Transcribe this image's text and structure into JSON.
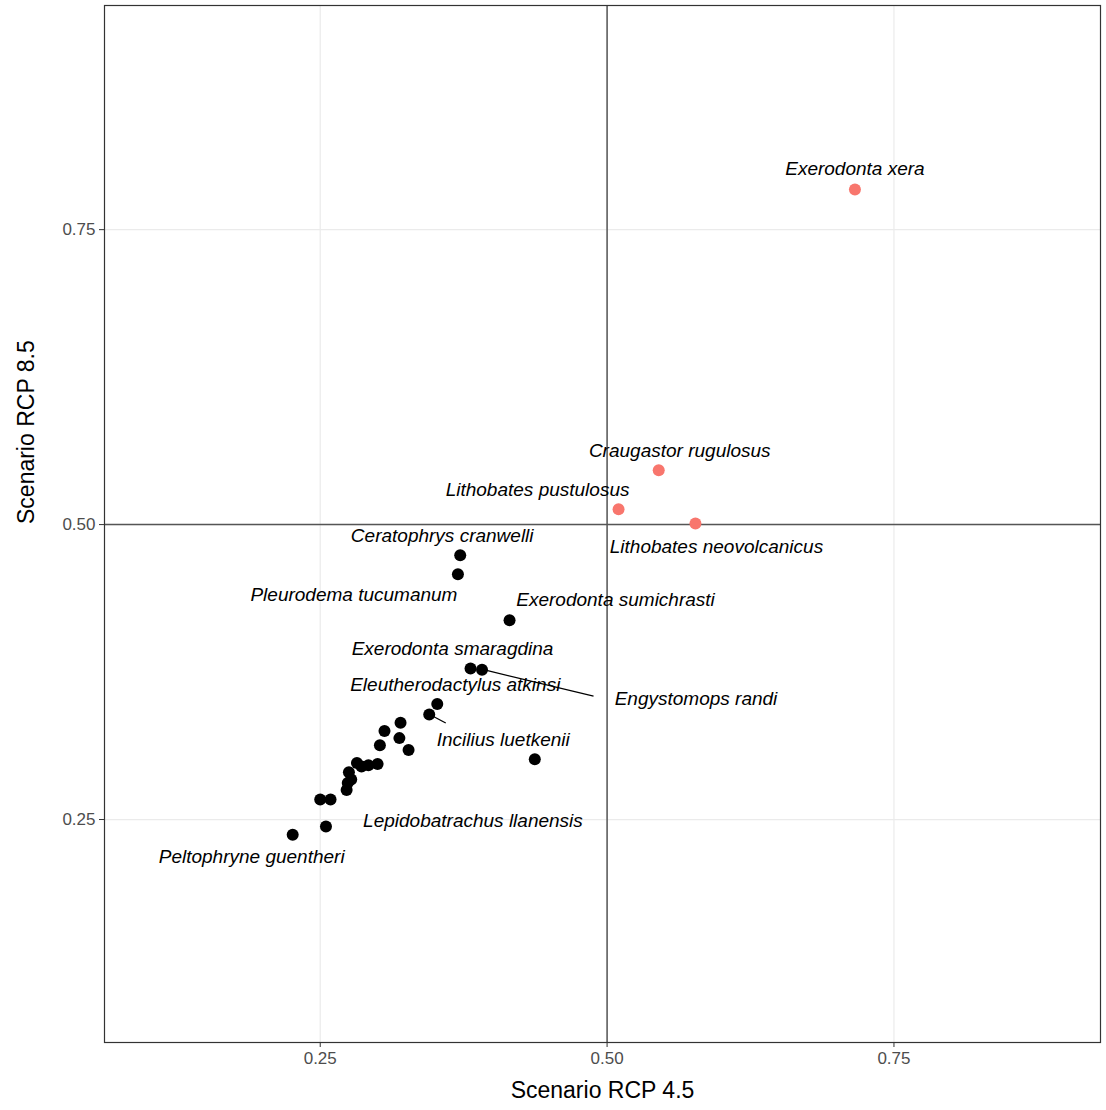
{
  "chart_data": {
    "type": "scatter",
    "x_label": "Scenario RCP 4.5",
    "y_label": "Scenario RCP 8.5",
    "x": [
      0.716,
      0.545,
      0.51,
      0.577,
      0.372,
      0.37,
      0.415,
      0.381,
      0.391,
      0.352,
      0.345,
      0.437,
      0.32,
      0.306,
      0.319,
      0.327,
      0.302,
      0.3,
      0.292,
      0.286,
      0.282,
      0.275,
      0.277,
      0.274,
      0.273,
      0.25,
      0.259,
      0.255,
      0.226
    ],
    "y": [
      0.784,
      0.546,
      0.513,
      0.501,
      0.474,
      0.458,
      0.419,
      0.378,
      0.377,
      0.348,
      0.339,
      0.301,
      0.332,
      0.325,
      0.319,
      0.309,
      0.313,
      0.297,
      0.296,
      0.295,
      0.298,
      0.29,
      0.284,
      0.281,
      0.275,
      0.267,
      0.267,
      0.244,
      0.237
    ],
    "labels": [
      "Exerodonta xera",
      "Craugastor rugulosus",
      "Lithobates pustulosus",
      "Lithobates neovolcanicus",
      "Ceratophrys cranwelli",
      "Pleurodema tucumanum",
      "Exerodonta sumichrasti",
      "Exerodonta smaragdina",
      "Engystomops randi",
      "Eleutherodactylus atkinsi",
      "Incilius luetkenii",
      null,
      null,
      null,
      null,
      null,
      null,
      null,
      null,
      null,
      null,
      null,
      null,
      null,
      null,
      null,
      null,
      "Lepidobatrachus llanensis",
      "Peltophryne guentheri"
    ],
    "colors": [
      "#F8766D",
      "#F8766D",
      "#F8766D",
      "#F8766D",
      "#000000",
      "#000000",
      "#000000",
      "#000000",
      "#000000",
      "#000000",
      "#000000",
      "#000000",
      "#000000",
      "#000000",
      "#000000",
      "#000000",
      "#000000",
      "#000000",
      "#000000",
      "#000000",
      "#000000",
      "#000000",
      "#000000",
      "#000000",
      "#000000",
      "#000000",
      "#000000",
      "#000000",
      "#000000"
    ],
    "xlim": [
      0.062,
      0.93
    ],
    "ylim": [
      0.061,
      0.94
    ],
    "xticks": [
      0.25,
      {
        "value": 0.5,
        "label": "0.50"
      },
      0.75
    ],
    "yticks": [
      0.25,
      {
        "value": 0.5,
        "label": "0.50"
      },
      0.75
    ],
    "thresholds": {
      "x": 0.5,
      "y": 0.5
    },
    "grid": true
  }
}
